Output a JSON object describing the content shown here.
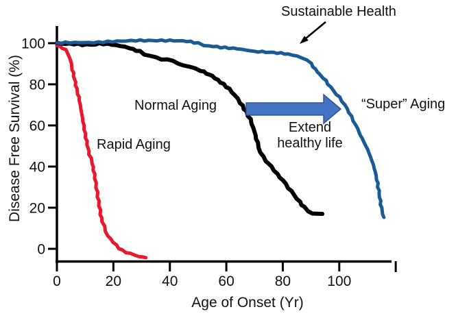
{
  "chart_data": {
    "type": "line",
    "title": "",
    "xlabel": "Age of Onset (Yr)",
    "ylabel": "Disease Free Survival (%)",
    "xlim": [
      0,
      120
    ],
    "ylim": [
      -5,
      103
    ],
    "x_ticks": [
      0,
      20,
      40,
      60,
      80,
      100
    ],
    "x_end_tick_unlabeled": 120,
    "y_ticks": [
      0,
      20,
      40,
      60,
      80,
      100
    ],
    "grid": false,
    "legend_position": "none (inline annotations)",
    "series": [
      {
        "name": "Rapid Aging",
        "color": "#e8192c",
        "stroke_width": 5,
        "points": [
          [
            0,
            99
          ],
          [
            1,
            98.3
          ],
          [
            2,
            97.7
          ],
          [
            3,
            96.7
          ],
          [
            4,
            95
          ],
          [
            4.5,
            92.7
          ],
          [
            5,
            90
          ],
          [
            5.5,
            87
          ],
          [
            6,
            84
          ],
          [
            6.5,
            81
          ],
          [
            7,
            78
          ],
          [
            7.5,
            75.3
          ],
          [
            8,
            72
          ],
          [
            8.5,
            68
          ],
          [
            9,
            64
          ],
          [
            9.5,
            60
          ],
          [
            10,
            56
          ],
          [
            10.5,
            52.3
          ],
          [
            11,
            49
          ],
          [
            11.5,
            46
          ],
          [
            12,
            44
          ],
          [
            12.5,
            41.3
          ],
          [
            13,
            38.3
          ],
          [
            13.5,
            34.3
          ],
          [
            14,
            29.7
          ],
          [
            14.5,
            25.3
          ],
          [
            15,
            21
          ],
          [
            15.5,
            16.7
          ],
          [
            16,
            13.3
          ],
          [
            16.7,
            11
          ],
          [
            17.3,
            8.7
          ],
          [
            18,
            6.3
          ],
          [
            19,
            4.7
          ],
          [
            20,
            3.3
          ],
          [
            21,
            1.7
          ],
          [
            22,
            0.3
          ],
          [
            23,
            -0.7
          ],
          [
            24.5,
            -1.7
          ],
          [
            26,
            -2.3
          ],
          [
            27.5,
            -3
          ],
          [
            29,
            -3.7
          ],
          [
            30.5,
            -4
          ],
          [
            31.5,
            -4.3
          ]
        ]
      },
      {
        "name": "Normal Aging",
        "color": "#000000",
        "stroke_width": 6,
        "points": [
          [
            0,
            100
          ],
          [
            3,
            99.7
          ],
          [
            6,
            99.7
          ],
          [
            9,
            99.3
          ],
          [
            12,
            99.3
          ],
          [
            15,
            99.7
          ],
          [
            18,
            99.7
          ],
          [
            21,
            99
          ],
          [
            24,
            98.3
          ],
          [
            26,
            97.7
          ],
          [
            28,
            96.3
          ],
          [
            29.5,
            96.3
          ],
          [
            31,
            94.7
          ],
          [
            33,
            93.7
          ],
          [
            35,
            93
          ],
          [
            37,
            92.3
          ],
          [
            39,
            92
          ],
          [
            41,
            91.3
          ],
          [
            43,
            90.3
          ],
          [
            45,
            89.3
          ],
          [
            47,
            88.3
          ],
          [
            49,
            87.7
          ],
          [
            51,
            86.7
          ],
          [
            53,
            85.3
          ],
          [
            55,
            84
          ],
          [
            57,
            82
          ],
          [
            59,
            80
          ],
          [
            61,
            77.7
          ],
          [
            63,
            74.7
          ],
          [
            65,
            71
          ],
          [
            67,
            66.7
          ],
          [
            68.5,
            63
          ],
          [
            70,
            56.7
          ],
          [
            71,
            51.7
          ],
          [
            72,
            47
          ],
          [
            73,
            44.7
          ],
          [
            74,
            42.7
          ],
          [
            76,
            40
          ],
          [
            78,
            36.3
          ],
          [
            80,
            33.3
          ],
          [
            82,
            29.7
          ],
          [
            84,
            26.3
          ],
          [
            86,
            22.7
          ],
          [
            87.5,
            20.3
          ],
          [
            89,
            18.3
          ],
          [
            90.5,
            17.3
          ],
          [
            92,
            17
          ],
          [
            94,
            17
          ]
        ]
      },
      {
        "name": "“Super” Aging (Sustainable Health)",
        "color": "#1a5b96",
        "stroke_width": 5,
        "points": [
          [
            0,
            100
          ],
          [
            3,
            100.3
          ],
          [
            8,
            100.3
          ],
          [
            13,
            100.3
          ],
          [
            18,
            100.7
          ],
          [
            23,
            101
          ],
          [
            28,
            101.3
          ],
          [
            34,
            101.3
          ],
          [
            40,
            101.3
          ],
          [
            46,
            101
          ],
          [
            50,
            100
          ],
          [
            52,
            99
          ],
          [
            54,
            98.7
          ],
          [
            58,
            98
          ],
          [
            64,
            97.3
          ],
          [
            70,
            96
          ],
          [
            74,
            95.7
          ],
          [
            78,
            95.3
          ],
          [
            82,
            94.7
          ],
          [
            85,
            93.7
          ],
          [
            87,
            93
          ],
          [
            88.5,
            91.7
          ],
          [
            90,
            90
          ],
          [
            91.5,
            87.3
          ],
          [
            93,
            85
          ],
          [
            94.5,
            83
          ],
          [
            96,
            80.3
          ],
          [
            98,
            76.7
          ],
          [
            100,
            73.7
          ],
          [
            102,
            70
          ],
          [
            103.5,
            66.3
          ],
          [
            105,
            62.3
          ],
          [
            106.5,
            58.3
          ],
          [
            108,
            53.7
          ],
          [
            109.5,
            50
          ],
          [
            110.5,
            46.7
          ],
          [
            111.5,
            43
          ],
          [
            112.5,
            39
          ],
          [
            113.3,
            33.7
          ],
          [
            114,
            28.3
          ],
          [
            114.5,
            23.3
          ],
          [
            115.2,
            18.3
          ],
          [
            115.8,
            15.3
          ]
        ]
      }
    ],
    "annotations": {
      "sustainable": "Sustainable Health",
      "rapid": "Rapid Aging",
      "normal": "Normal Aging",
      "super": "“Super” Aging",
      "extend_line1": "Extend",
      "extend_line2": "healthy life"
    },
    "colors": {
      "axis": "#000000",
      "text": "#111111",
      "block_arrow_fill": "#4472c4",
      "block_arrow_border": "#2f5794",
      "pointer_arrow": "#000000"
    }
  }
}
